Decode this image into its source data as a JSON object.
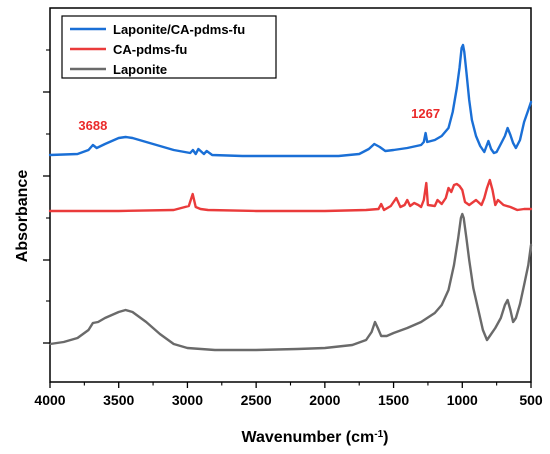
{
  "chart_data": {
    "type": "line",
    "title": "",
    "xlabel": "Wavenumber (cm",
    "xlabel_sup": "-1",
    "xlabel_close": ")",
    "ylabel": "Absorbance",
    "xlim": [
      4000,
      500
    ],
    "x_reversed": true,
    "y_ticks_labeled": false,
    "xticks": [
      "4000",
      "3500",
      "3000",
      "2500",
      "2000",
      "1500",
      "1000",
      "500"
    ],
    "grid": false,
    "legend_position": "top-left",
    "series": [
      {
        "name": "Laponite/CA-pdms-fu",
        "color": "#1a6fd6",
        "points": [
          [
            4000,
            155
          ],
          [
            3800,
            154
          ],
          [
            3720,
            150
          ],
          [
            3688,
            145
          ],
          [
            3660,
            148
          ],
          [
            3600,
            144
          ],
          [
            3500,
            138
          ],
          [
            3450,
            137
          ],
          [
            3400,
            138
          ],
          [
            3300,
            142
          ],
          [
            3100,
            150
          ],
          [
            2980,
            153
          ],
          [
            2960,
            150
          ],
          [
            2940,
            154
          ],
          [
            2920,
            149
          ],
          [
            2880,
            154
          ],
          [
            2860,
            151
          ],
          [
            2820,
            155
          ],
          [
            2600,
            156
          ],
          [
            2200,
            156
          ],
          [
            1900,
            156
          ],
          [
            1750,
            154
          ],
          [
            1680,
            149
          ],
          [
            1640,
            144
          ],
          [
            1600,
            147
          ],
          [
            1560,
            151
          ],
          [
            1500,
            150
          ],
          [
            1400,
            148
          ],
          [
            1300,
            145
          ],
          [
            1280,
            142
          ],
          [
            1267,
            133
          ],
          [
            1255,
            142
          ],
          [
            1200,
            140
          ],
          [
            1150,
            136
          ],
          [
            1100,
            128
          ],
          [
            1070,
            112
          ],
          [
            1040,
            88
          ],
          [
            1020,
            68
          ],
          [
            1005,
            48
          ],
          [
            995,
            45
          ],
          [
            985,
            52
          ],
          [
            970,
            72
          ],
          [
            950,
            100
          ],
          [
            930,
            120
          ],
          [
            900,
            136
          ],
          [
            870,
            146
          ],
          [
            840,
            152
          ],
          [
            810,
            141
          ],
          [
            790,
            149
          ],
          [
            770,
            153
          ],
          [
            750,
            152
          ],
          [
            720,
            144
          ],
          [
            690,
            136
          ],
          [
            670,
            128
          ],
          [
            650,
            135
          ],
          [
            630,
            143
          ],
          [
            610,
            148
          ],
          [
            580,
            140
          ],
          [
            550,
            122
          ],
          [
            520,
            110
          ],
          [
            500,
            102
          ]
        ]
      },
      {
        "name": "CA-pdms-fu",
        "color": "#ea3b3b",
        "points": [
          [
            4000,
            211
          ],
          [
            3500,
            211
          ],
          [
            3100,
            210
          ],
          [
            2990,
            206
          ],
          [
            2962,
            194
          ],
          [
            2940,
            207
          ],
          [
            2905,
            209
          ],
          [
            2850,
            210
          ],
          [
            2500,
            211
          ],
          [
            2000,
            211
          ],
          [
            1700,
            210
          ],
          [
            1610,
            209
          ],
          [
            1590,
            204
          ],
          [
            1570,
            210
          ],
          [
            1520,
            206
          ],
          [
            1480,
            198
          ],
          [
            1450,
            207
          ],
          [
            1420,
            205
          ],
          [
            1400,
            200
          ],
          [
            1380,
            206
          ],
          [
            1350,
            203
          ],
          [
            1320,
            205
          ],
          [
            1300,
            207
          ],
          [
            1280,
            200
          ],
          [
            1262,
            183
          ],
          [
            1250,
            205
          ],
          [
            1200,
            206
          ],
          [
            1180,
            200
          ],
          [
            1150,
            204
          ],
          [
            1120,
            198
          ],
          [
            1100,
            188
          ],
          [
            1080,
            192
          ],
          [
            1060,
            185
          ],
          [
            1040,
            184
          ],
          [
            1020,
            186
          ],
          [
            1000,
            190
          ],
          [
            980,
            202
          ],
          [
            950,
            205
          ],
          [
            900,
            200
          ],
          [
            860,
            205
          ],
          [
            840,
            198
          ],
          [
            820,
            188
          ],
          [
            800,
            180
          ],
          [
            780,
            190
          ],
          [
            760,
            205
          ],
          [
            740,
            200
          ],
          [
            700,
            205
          ],
          [
            650,
            207
          ],
          [
            600,
            210
          ],
          [
            550,
            209
          ],
          [
            500,
            209
          ]
        ]
      },
      {
        "name": "Laponite",
        "color": "#6a6a6a",
        "points": [
          [
            4000,
            344
          ],
          [
            3900,
            342
          ],
          [
            3800,
            338
          ],
          [
            3720,
            330
          ],
          [
            3688,
            323
          ],
          [
            3650,
            322
          ],
          [
            3600,
            318
          ],
          [
            3500,
            312
          ],
          [
            3450,
            310
          ],
          [
            3400,
            312
          ],
          [
            3300,
            322
          ],
          [
            3200,
            334
          ],
          [
            3100,
            344
          ],
          [
            3000,
            348
          ],
          [
            2800,
            350
          ],
          [
            2500,
            350
          ],
          [
            2200,
            349
          ],
          [
            2000,
            348
          ],
          [
            1800,
            345
          ],
          [
            1700,
            340
          ],
          [
            1660,
            332
          ],
          [
            1635,
            322
          ],
          [
            1615,
            328
          ],
          [
            1590,
            336
          ],
          [
            1550,
            336
          ],
          [
            1500,
            333
          ],
          [
            1400,
            328
          ],
          [
            1300,
            322
          ],
          [
            1200,
            313
          ],
          [
            1150,
            305
          ],
          [
            1100,
            290
          ],
          [
            1060,
            265
          ],
          [
            1030,
            238
          ],
          [
            1010,
            218
          ],
          [
            1000,
            214
          ],
          [
            990,
            218
          ],
          [
            970,
            238
          ],
          [
            950,
            260
          ],
          [
            920,
            288
          ],
          [
            880,
            312
          ],
          [
            850,
            330
          ],
          [
            820,
            340
          ],
          [
            800,
            336
          ],
          [
            760,
            328
          ],
          [
            720,
            318
          ],
          [
            690,
            305
          ],
          [
            670,
            300
          ],
          [
            650,
            310
          ],
          [
            630,
            322
          ],
          [
            610,
            318
          ],
          [
            580,
            304
          ],
          [
            550,
            285
          ],
          [
            520,
            265
          ],
          [
            500,
            245
          ]
        ]
      }
    ],
    "annotations": [
      {
        "text": "3688",
        "x": 3688,
        "y": 130,
        "color": "#ea2a2a"
      },
      {
        "text": "1267",
        "x": 1267,
        "y": 118,
        "color": "#ea2a2a"
      }
    ]
  }
}
